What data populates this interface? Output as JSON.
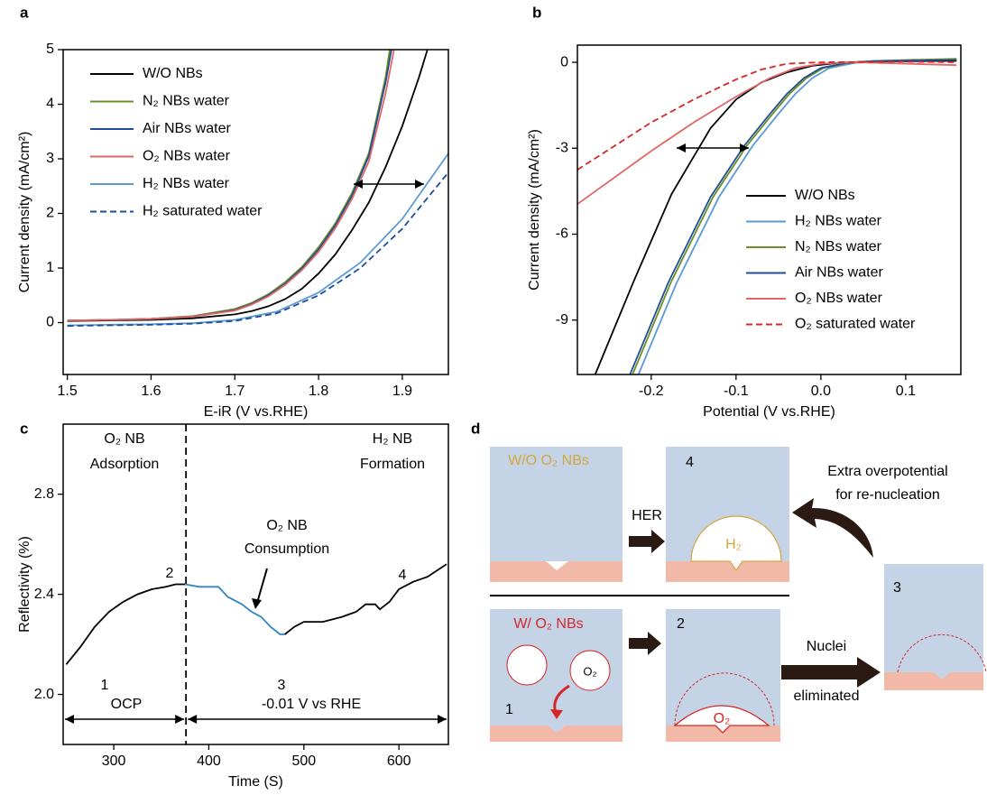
{
  "chart_data": [
    {
      "type": "line",
      "panel_label": "a",
      "x_label": "E-iR (V vs.RHE)",
      "y_label": "Current density (mA/cm²)",
      "xlim": [
        1.495,
        1.955
      ],
      "ylim": [
        -0.95,
        5
      ],
      "xticks": [
        1.5,
        1.6,
        1.7,
        1.8,
        1.9
      ],
      "yticks": [
        0,
        1,
        2,
        3,
        4,
        5
      ],
      "legend": "upper left",
      "series": [
        {
          "name": "W/O NBs",
          "color": "#000000",
          "dash": false,
          "x": [
            1.5,
            1.55,
            1.6,
            1.65,
            1.7,
            1.72,
            1.74,
            1.76,
            1.78,
            1.8,
            1.82,
            1.84,
            1.86,
            1.88,
            1.9,
            1.92,
            1.93
          ],
          "values": [
            0.03,
            0.04,
            0.05,
            0.08,
            0.15,
            0.21,
            0.3,
            0.43,
            0.62,
            0.9,
            1.25,
            1.7,
            2.2,
            2.85,
            3.6,
            4.5,
            5.0
          ]
        },
        {
          "name": "N₂ NBs water",
          "color": "#6b8e23",
          "dash": false,
          "x": [
            1.5,
            1.55,
            1.6,
            1.65,
            1.7,
            1.72,
            1.74,
            1.76,
            1.78,
            1.8,
            1.82,
            1.84,
            1.86,
            1.88,
            1.885
          ],
          "values": [
            0.04,
            0.05,
            0.07,
            0.12,
            0.25,
            0.36,
            0.52,
            0.74,
            1.02,
            1.38,
            1.82,
            2.38,
            3.1,
            4.5,
            5.0
          ]
        },
        {
          "name": "Air NBs water",
          "color": "#1f4e99",
          "dash": false,
          "x": [
            1.5,
            1.55,
            1.6,
            1.65,
            1.7,
            1.72,
            1.74,
            1.76,
            1.78,
            1.8,
            1.82,
            1.84,
            1.86,
            1.88,
            1.887
          ],
          "values": [
            0.04,
            0.05,
            0.07,
            0.11,
            0.23,
            0.34,
            0.5,
            0.71,
            0.99,
            1.34,
            1.78,
            2.33,
            3.05,
            4.4,
            5.0
          ]
        },
        {
          "name": "O₂ NBs water",
          "color": "#e06666",
          "dash": false,
          "x": [
            1.5,
            1.55,
            1.6,
            1.65,
            1.7,
            1.72,
            1.74,
            1.76,
            1.78,
            1.8,
            1.82,
            1.84,
            1.86,
            1.88,
            1.89
          ],
          "values": [
            0.04,
            0.05,
            0.07,
            0.11,
            0.22,
            0.33,
            0.48,
            0.69,
            0.96,
            1.3,
            1.73,
            2.27,
            2.95,
            4.2,
            5.0
          ]
        },
        {
          "name": "H₂ NBs water",
          "color": "#5b9bd5",
          "dash": false,
          "x": [
            1.5,
            1.55,
            1.6,
            1.65,
            1.7,
            1.75,
            1.8,
            1.85,
            1.9,
            1.955
          ],
          "values": [
            -0.05,
            -0.04,
            -0.03,
            -0.01,
            0.05,
            0.2,
            0.55,
            1.1,
            1.9,
            3.1
          ]
        },
        {
          "name": "H₂ saturated water",
          "color": "#1f4e99",
          "dash": true,
          "x": [
            1.5,
            1.55,
            1.6,
            1.65,
            1.7,
            1.75,
            1.8,
            1.85,
            1.9,
            1.955
          ],
          "values": [
            -0.06,
            -0.05,
            -0.04,
            -0.02,
            0.03,
            0.17,
            0.5,
            1.0,
            1.72,
            2.75
          ]
        }
      ]
    },
    {
      "type": "line",
      "panel_label": "b",
      "x_label": "Potential (V vs.RHE)",
      "y_label": "Current density (mA/cm²)",
      "xlim": [
        -0.287,
        0.165
      ],
      "ylim": [
        -10.9,
        0.6
      ],
      "xticks": [
        -0.2,
        -0.1,
        {
          "value": 0,
          "label": "0.0"
        },
        0.1
      ],
      "yticks": [
        0,
        -3,
        -6,
        -9
      ],
      "legend": "lower right",
      "series": [
        {
          "name": "W/O NBs",
          "color": "#000000",
          "dash": false,
          "x": [
            -0.266,
            -0.22,
            -0.176,
            -0.13,
            -0.1,
            -0.07,
            -0.04,
            -0.01,
            0.02,
            0.05,
            0.1,
            0.16
          ],
          "values": [
            -10.9,
            -7.6,
            -4.6,
            -2.3,
            -1.3,
            -0.7,
            -0.35,
            -0.12,
            -0.02,
            0.02,
            0.04,
            0.05
          ]
        },
        {
          "name": "H₂  NBs water",
          "color": "#5b9bd5",
          "dash": false,
          "x": [
            -0.215,
            -0.17,
            -0.12,
            -0.08,
            -0.05,
            -0.03,
            -0.01,
            0.01,
            0.04,
            0.07,
            0.1,
            0.16
          ],
          "values": [
            -10.9,
            -7.7,
            -4.7,
            -2.9,
            -1.8,
            -1.1,
            -0.55,
            -0.2,
            -0.02,
            0.04,
            0.06,
            0.09
          ]
        },
        {
          "name": "N₂  NBs water",
          "color": "#6b8e23",
          "dash": false,
          "x": [
            -0.222,
            -0.177,
            -0.127,
            -0.087,
            -0.057,
            -0.037,
            -0.017,
            0.003,
            0.033,
            0.063,
            0.1,
            0.16
          ],
          "values": [
            -10.9,
            -7.7,
            -4.7,
            -2.9,
            -1.8,
            -1.1,
            -0.55,
            -0.2,
            -0.02,
            0.05,
            0.08,
            0.12
          ]
        },
        {
          "name": "Air  NBs water",
          "color": "#1f4e99",
          "dash": false,
          "x": [
            -0.225,
            -0.18,
            -0.13,
            -0.09,
            -0.06,
            -0.04,
            -0.02,
            0.0,
            0.03,
            0.06,
            0.1,
            0.16
          ],
          "values": [
            -10.9,
            -7.7,
            -4.7,
            -2.9,
            -1.8,
            -1.1,
            -0.55,
            -0.2,
            -0.02,
            0.04,
            0.06,
            0.08
          ]
        },
        {
          "name": "O₂  NBs water",
          "color": "#e06666",
          "dash": false,
          "x": [
            -0.287,
            -0.2,
            -0.15,
            -0.1,
            -0.06,
            -0.03,
            0.0,
            0.04,
            0.1,
            0.16
          ],
          "values": [
            -4.95,
            -3.1,
            -2.1,
            -1.2,
            -0.55,
            -0.2,
            -0.05,
            0.0,
            -0.05,
            -0.1
          ]
        },
        {
          "name": "O₂  saturated water",
          "color": "#d62728",
          "dash": true,
          "x": [
            -0.287,
            -0.2,
            -0.15,
            -0.1,
            -0.07,
            -0.04,
            0.0,
            0.1,
            0.16
          ],
          "values": [
            -3.75,
            -2.1,
            -1.3,
            -0.6,
            -0.25,
            -0.05,
            0.0,
            0.02,
            0.0
          ]
        }
      ]
    },
    {
      "type": "line",
      "panel_label": "c",
      "x_label": "Time (S)",
      "y_label": "Reflectivity (%)",
      "xlim": [
        246.8,
        652
      ],
      "ylim": [
        1.8,
        3.08
      ],
      "xticks": [
        300,
        400,
        500,
        600
      ],
      "yticks": [
        {
          "value": 2,
          "label": "2.0"
        },
        2.4,
        2.8
      ],
      "divider_x": 376,
      "annotations": [
        "O₂ NB",
        "Adsorption",
        "H₂ NB",
        "Formation",
        "O₂ NB",
        "Consumption",
        "1",
        "2",
        "3",
        "4",
        "OCP",
        "-0.01 V vs RHE"
      ],
      "series": [
        {
          "color": "#000000",
          "dash": false,
          "x": [
            250,
            265,
            280,
            295,
            310,
            325,
            340,
            355,
            365,
            375
          ],
          "values": [
            2.12,
            2.19,
            2.27,
            2.33,
            2.37,
            2.4,
            2.42,
            2.43,
            2.44,
            2.44
          ]
        },
        {
          "color": "#2e86c1",
          "dash": false,
          "x": [
            375,
            390,
            410,
            420,
            435,
            445,
            455,
            465,
            475,
            480
          ],
          "values": [
            2.44,
            2.43,
            2.43,
            2.39,
            2.36,
            2.33,
            2.31,
            2.27,
            2.24,
            2.24
          ]
        },
        {
          "color": "#000000",
          "dash": false,
          "x": [
            480,
            490,
            500,
            520,
            540,
            555,
            565,
            575,
            580,
            590,
            600,
            615,
            630,
            650
          ],
          "values": [
            2.24,
            2.27,
            2.29,
            2.29,
            2.31,
            2.33,
            2.36,
            2.36,
            2.34,
            2.37,
            2.42,
            2.45,
            2.47,
            2.52
          ]
        }
      ]
    }
  ],
  "diagram": {
    "panel_label": "d",
    "without_label": "W/O O₂ NBs",
    "her": "HER",
    "step4": "4",
    "h2": "H₂",
    "extra": [
      "Extra overpotential",
      "for re-nucleation"
    ],
    "step3": "3",
    "with_label": "W/ O₂ NBs",
    "bubble_o2": "O₂",
    "step1": "1",
    "step2": "2",
    "film_o2": "O₂",
    "nuclei": [
      "Nuclei",
      "eliminated"
    ]
  }
}
